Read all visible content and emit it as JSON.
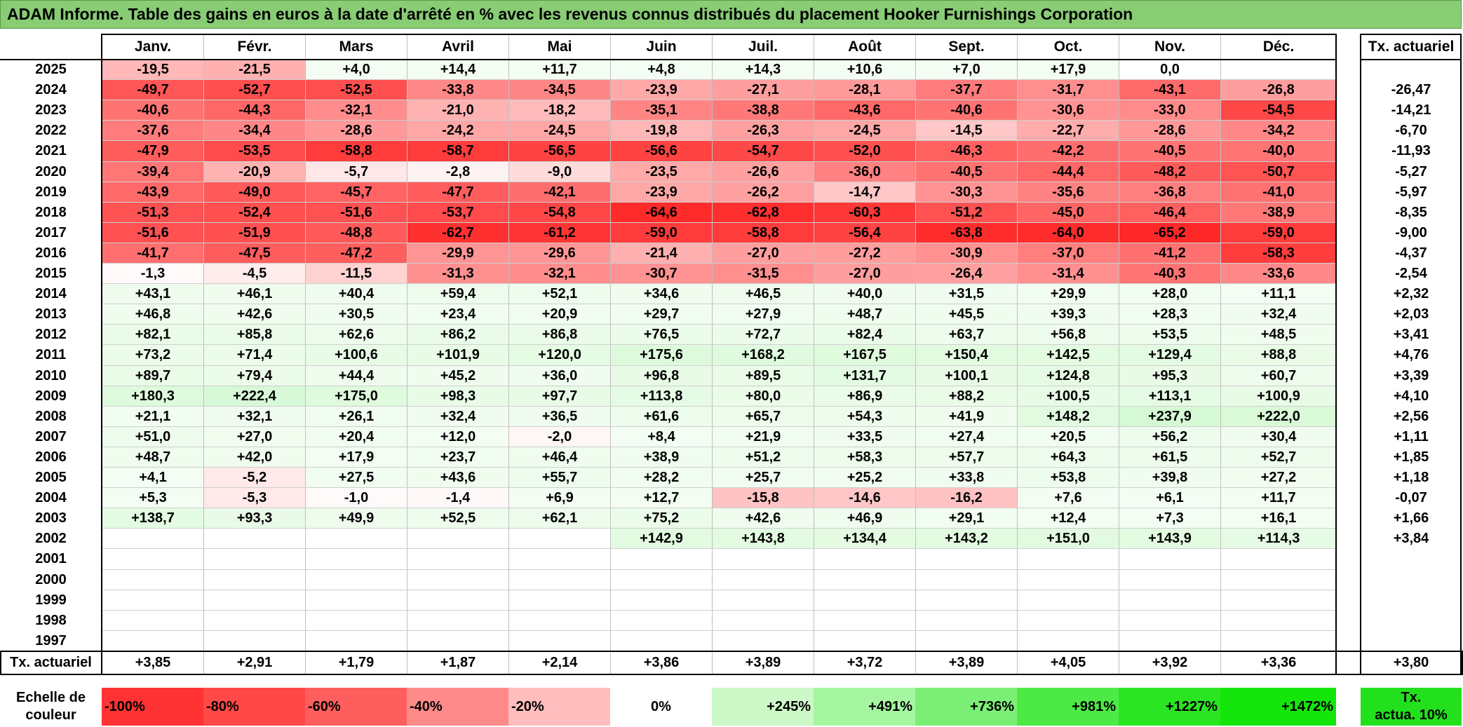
{
  "title": "ADAM Informe. Table des gains en euros à la date d'arrêté en % avec les revenus connus distribués du placement Hooker Furnishings Corporation",
  "chart_data": {
    "type": "table",
    "months": [
      "Janv.",
      "Févr.",
      "Mars",
      "Avril",
      "Mai",
      "Juin",
      "Juil.",
      "Août",
      "Sept.",
      "Oct.",
      "Nov.",
      "Déc."
    ],
    "annual_header": "Tx. actuariel",
    "rows": [
      {
        "year": "2025",
        "values": [
          "-19,5",
          "-21,5",
          "+4,0",
          "+14,4",
          "+11,7",
          "+4,8",
          "+14,3",
          "+10,6",
          "+7,0",
          "+17,9",
          "0,0",
          ""
        ],
        "annual": ""
      },
      {
        "year": "2024",
        "values": [
          "-49,7",
          "-52,7",
          "-52,5",
          "-33,8",
          "-34,5",
          "-23,9",
          "-27,1",
          "-28,1",
          "-37,7",
          "-31,7",
          "-43,1",
          "-26,8"
        ],
        "annual": "-26,47"
      },
      {
        "year": "2023",
        "values": [
          "-40,6",
          "-44,3",
          "-32,1",
          "-21,0",
          "-18,2",
          "-35,1",
          "-38,8",
          "-43,6",
          "-40,6",
          "-30,6",
          "-33,0",
          "-54,5"
        ],
        "annual": "-14,21"
      },
      {
        "year": "2022",
        "values": [
          "-37,6",
          "-34,4",
          "-28,6",
          "-24,2",
          "-24,5",
          "-19,8",
          "-26,3",
          "-24,5",
          "-14,5",
          "-22,7",
          "-28,6",
          "-34,2"
        ],
        "annual": "-6,70"
      },
      {
        "year": "2021",
        "values": [
          "-47,9",
          "-53,5",
          "-58,8",
          "-58,7",
          "-56,5",
          "-56,6",
          "-54,7",
          "-52,0",
          "-46,3",
          "-42,2",
          "-40,5",
          "-40,0"
        ],
        "annual": "-11,93"
      },
      {
        "year": "2020",
        "values": [
          "-39,4",
          "-20,9",
          "-5,7",
          "-2,8",
          "-9,0",
          "-23,5",
          "-26,6",
          "-36,0",
          "-40,5",
          "-44,4",
          "-48,2",
          "-50,7"
        ],
        "annual": "-5,27"
      },
      {
        "year": "2019",
        "values": [
          "-43,9",
          "-49,0",
          "-45,7",
          "-47,7",
          "-42,1",
          "-23,9",
          "-26,2",
          "-14,7",
          "-30,3",
          "-35,6",
          "-36,8",
          "-41,0"
        ],
        "annual": "-5,97"
      },
      {
        "year": "2018",
        "values": [
          "-51,3",
          "-52,4",
          "-51,6",
          "-53,7",
          "-54,8",
          "-64,6",
          "-62,8",
          "-60,3",
          "-51,2",
          "-45,0",
          "-46,4",
          "-38,9"
        ],
        "annual": "-8,35"
      },
      {
        "year": "2017",
        "values": [
          "-51,6",
          "-51,9",
          "-48,8",
          "-62,7",
          "-61,2",
          "-59,0",
          "-58,8",
          "-56,4",
          "-63,8",
          "-64,0",
          "-65,2",
          "-59,0"
        ],
        "annual": "-9,00"
      },
      {
        "year": "2016",
        "values": [
          "-41,7",
          "-47,5",
          "-47,2",
          "-29,9",
          "-29,6",
          "-21,4",
          "-27,0",
          "-27,2",
          "-30,9",
          "-37,0",
          "-41,2",
          "-58,3"
        ],
        "annual": "-4,37"
      },
      {
        "year": "2015",
        "values": [
          "-1,3",
          "-4,5",
          "-11,5",
          "-31,3",
          "-32,1",
          "-30,7",
          "-31,5",
          "-27,0",
          "-26,4",
          "-31,4",
          "-40,3",
          "-33,6"
        ],
        "annual": "-2,54"
      },
      {
        "year": "2014",
        "values": [
          "+43,1",
          "+46,1",
          "+40,4",
          "+59,4",
          "+52,1",
          "+34,6",
          "+46,5",
          "+40,0",
          "+31,5",
          "+29,9",
          "+28,0",
          "+11,1"
        ],
        "annual": "+2,32"
      },
      {
        "year": "2013",
        "values": [
          "+46,8",
          "+42,6",
          "+30,5",
          "+23,4",
          "+20,9",
          "+29,7",
          "+27,9",
          "+48,7",
          "+45,5",
          "+39,3",
          "+28,3",
          "+32,4"
        ],
        "annual": "+2,03"
      },
      {
        "year": "2012",
        "values": [
          "+82,1",
          "+85,8",
          "+62,6",
          "+86,2",
          "+86,8",
          "+76,5",
          "+72,7",
          "+82,4",
          "+63,7",
          "+56,8",
          "+53,5",
          "+48,5"
        ],
        "annual": "+3,41"
      },
      {
        "year": "2011",
        "values": [
          "+73,2",
          "+71,4",
          "+100,6",
          "+101,9",
          "+120,0",
          "+175,6",
          "+168,2",
          "+167,5",
          "+150,4",
          "+142,5",
          "+129,4",
          "+88,8"
        ],
        "annual": "+4,76"
      },
      {
        "year": "2010",
        "values": [
          "+89,7",
          "+79,4",
          "+44,4",
          "+45,2",
          "+36,0",
          "+96,8",
          "+89,5",
          "+131,7",
          "+100,1",
          "+124,8",
          "+95,3",
          "+60,7"
        ],
        "annual": "+3,39"
      },
      {
        "year": "2009",
        "values": [
          "+180,3",
          "+222,4",
          "+175,0",
          "+98,3",
          "+97,7",
          "+113,8",
          "+80,0",
          "+86,9",
          "+88,2",
          "+100,5",
          "+113,1",
          "+100,9"
        ],
        "annual": "+4,10"
      },
      {
        "year": "2008",
        "values": [
          "+21,1",
          "+32,1",
          "+26,1",
          "+32,4",
          "+36,5",
          "+61,6",
          "+65,7",
          "+54,3",
          "+41,9",
          "+148,2",
          "+237,9",
          "+222,0"
        ],
        "annual": "+2,56"
      },
      {
        "year": "2007",
        "values": [
          "+51,0",
          "+27,0",
          "+20,4",
          "+12,0",
          "-2,0",
          "+8,4",
          "+21,9",
          "+33,5",
          "+27,4",
          "+20,5",
          "+56,2",
          "+30,4"
        ],
        "annual": "+1,11"
      },
      {
        "year": "2006",
        "values": [
          "+48,7",
          "+42,0",
          "+17,9",
          "+23,7",
          "+46,4",
          "+38,9",
          "+51,2",
          "+58,3",
          "+57,7",
          "+64,3",
          "+61,5",
          "+52,7"
        ],
        "annual": "+1,85"
      },
      {
        "year": "2005",
        "values": [
          "+4,1",
          "-5,2",
          "+27,5",
          "+43,6",
          "+55,7",
          "+28,2",
          "+25,7",
          "+25,2",
          "+33,8",
          "+53,8",
          "+39,8",
          "+27,2"
        ],
        "annual": "+1,18"
      },
      {
        "year": "2004",
        "values": [
          "+5,3",
          "-5,3",
          "-1,0",
          "-1,4",
          "+6,9",
          "+12,7",
          "-15,8",
          "-14,6",
          "-16,2",
          "+7,6",
          "+6,1",
          "+11,7"
        ],
        "annual": "-0,07"
      },
      {
        "year": "2003",
        "values": [
          "+138,7",
          "+93,3",
          "+49,9",
          "+52,5",
          "+62,1",
          "+75,2",
          "+42,6",
          "+46,9",
          "+29,1",
          "+12,4",
          "+7,3",
          "+16,1"
        ],
        "annual": "+1,66"
      },
      {
        "year": "2002",
        "values": [
          "",
          "",
          "",
          "",
          "",
          "+142,9",
          "+143,8",
          "+134,4",
          "+143,2",
          "+151,0",
          "+143,9",
          "+114,3"
        ],
        "annual": "+3,84"
      },
      {
        "year": "2001",
        "values": [
          "",
          "",
          "",
          "",
          "",
          "",
          "",
          "",
          "",
          "",
          "",
          ""
        ],
        "annual": ""
      },
      {
        "year": "2000",
        "values": [
          "",
          "",
          "",
          "",
          "",
          "",
          "",
          "",
          "",
          "",
          "",
          ""
        ],
        "annual": ""
      },
      {
        "year": "1999",
        "values": [
          "",
          "",
          "",
          "",
          "",
          "",
          "",
          "",
          "",
          "",
          "",
          ""
        ],
        "annual": ""
      },
      {
        "year": "1998",
        "values": [
          "",
          "",
          "",
          "",
          "",
          "",
          "",
          "",
          "",
          "",
          "",
          ""
        ],
        "annual": ""
      },
      {
        "year": "1997",
        "values": [
          "",
          "",
          "",
          "",
          "",
          "",
          "",
          "",
          "",
          "",
          "",
          ""
        ],
        "annual": ""
      }
    ],
    "footer": {
      "label": "Tx. actuariel",
      "values": [
        "+3,85",
        "+2,91",
        "+1,79",
        "+1,87",
        "+2,14",
        "+3,86",
        "+3,89",
        "+3,72",
        "+3,89",
        "+4,05",
        "+3,92",
        "+3,36"
      ],
      "annual": "+3,80"
    },
    "color_scale": {
      "label_line1": "Echelle de",
      "label_line2": "couleur",
      "steps": [
        "-100%",
        "-80%",
        "-60%",
        "-40%",
        "-20%",
        "0%",
        "+245%",
        "+491%",
        "+736%",
        "+981%",
        "+1227%",
        "+1472%"
      ],
      "annual_label_line1": "Tx.",
      "annual_label_line2": "actua. 10%"
    },
    "colors": {
      "negative_max": "#ff1a1a",
      "positive_max": "#1ee61e",
      "neutral": "#ffffff",
      "title_bg": "#88cc74"
    }
  }
}
